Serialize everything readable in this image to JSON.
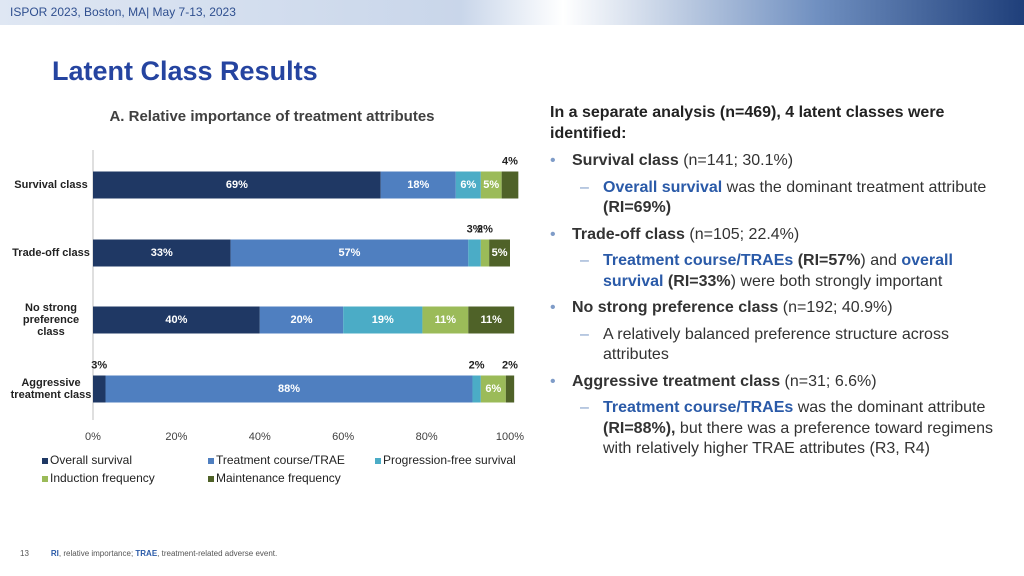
{
  "header": {
    "text": "ISPOR 2023, Boston, MA| May 7-13, 2023"
  },
  "title": "Latent Class Results",
  "chart_data": {
    "type": "stacked-barh",
    "title": "A. Relative importance of treatment attributes",
    "categories": [
      "Survival class",
      "Trade-off class",
      "No strong preference class",
      "Aggressive treatment class"
    ],
    "series": [
      {
        "name": "Overall survival",
        "color": "#1f3864",
        "values": [
          69,
          33,
          40,
          3
        ],
        "value_labels": [
          "69%",
          "33%",
          "40%",
          "3%"
        ]
      },
      {
        "name": "Treatment course/TRAE",
        "color": "#4f7fc0",
        "values": [
          18,
          57,
          20,
          88
        ],
        "value_labels": [
          "18%",
          "57%",
          "20%",
          "88%"
        ]
      },
      {
        "name": "Progression-free survival",
        "color": "#4bacc6",
        "values": [
          6,
          3,
          19,
          2
        ],
        "value_labels": [
          "6%",
          "3%",
          "19%",
          "2%"
        ]
      },
      {
        "name": "Induction frequency",
        "color": "#9bbb59",
        "values": [
          5,
          2,
          11,
          6
        ],
        "value_labels": [
          "5%",
          "2%",
          "11%",
          "6%"
        ]
      },
      {
        "name": "Maintenance frequency",
        "color": "#4f6228",
        "values": [
          4,
          5,
          11,
          2
        ],
        "value_labels": [
          "4%",
          "5%",
          "11%",
          "2%"
        ]
      }
    ],
    "xlim": [
      0,
      100
    ],
    "xticks": [
      {
        "value": 0,
        "label": "0%"
      },
      {
        "value": 20,
        "label": "20%"
      },
      {
        "value": 40,
        "label": "40%"
      },
      {
        "value": 60,
        "label": "60%"
      },
      {
        "value": 80,
        "label": "80%"
      },
      {
        "value": 100,
        "label": "100%"
      }
    ],
    "legend": "bottom"
  },
  "summary": {
    "intro": "In a separate analysis (n=469), 4 latent classes were identified:",
    "items": [
      {
        "label": "Survival class",
        "detail": " (n=141; 30.1%)",
        "sub": [
          "Overall survival",
          " was the dominant treatment attribute ",
          "(RI=69%)"
        ]
      },
      {
        "label": "Trade-off class",
        "detail": " (n=105; 22.4%)",
        "sub": [
          "Treatment course/TRAEs",
          " (RI=57%",
          ") and ",
          "overall survival",
          " (RI=33%",
          ") were both strongly important"
        ]
      },
      {
        "label": "No strong preference class",
        "detail": " (n=192; 40.9%)",
        "sub": [
          "A relatively balanced preference structure across attributes"
        ]
      },
      {
        "label": "Aggressive treatment class",
        "detail": " (n=31; 6.6%)",
        "sub": [
          "Treatment course/TRAEs",
          " was the dominant attribute ",
          "(RI=88%),",
          " but there was a preference toward regimens with relatively higher TRAE attributes (R3, R4)"
        ]
      }
    ]
  },
  "footer": {
    "page": "13",
    "parts": [
      "RI",
      ", relative importance; ",
      "TRAE",
      ", treatment-related adverse event."
    ]
  }
}
